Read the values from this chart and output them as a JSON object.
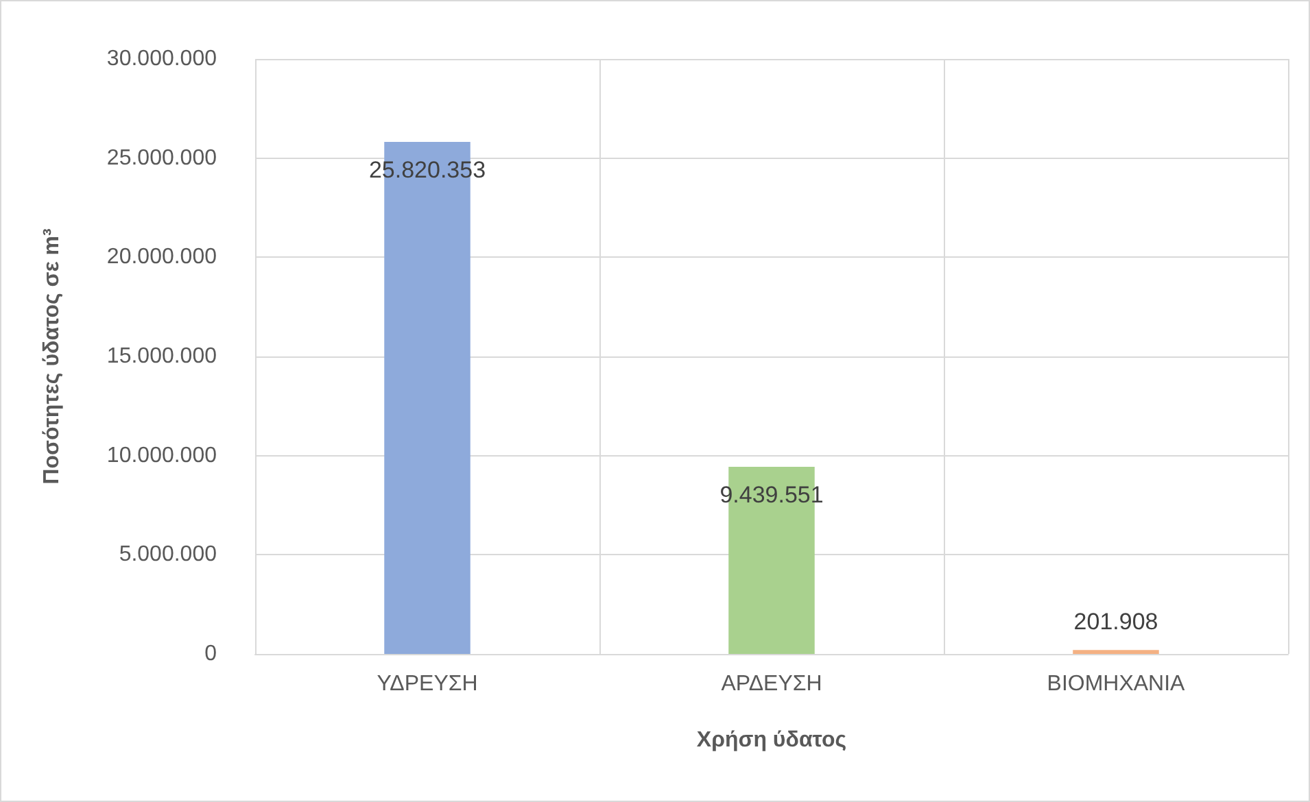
{
  "chart_data": {
    "type": "bar",
    "xlabel": "Χρήση ύδατος",
    "ylabel": "Ποσότητες ύδατος σε m³",
    "categories": [
      "ΥΔΡΕΥΣΗ",
      "ΑΡΔΕΥΣΗ",
      "ΒΙΟΜΗΧΑΝΙΑ"
    ],
    "values": [
      25820353,
      9439551,
      201908
    ],
    "value_labels": [
      "25.820.353",
      "9.439.551",
      "201.908"
    ],
    "colors": [
      "#8eaadb",
      "#a9d18e",
      "#f4b183"
    ],
    "ylim": [
      0,
      30000000
    ],
    "yticks": [
      0,
      {
        "value": 5000000,
        "label": "5.000.000"
      },
      {
        "value": 10000000,
        "label": "10.000.000"
      },
      {
        "value": 15000000,
        "label": "15.000.000"
      },
      {
        "value": 20000000,
        "label": "20.000.000"
      },
      {
        "value": 25000000,
        "label": "25.000.000"
      },
      {
        "value": 30000000,
        "label": "30.000.000"
      }
    ],
    "grid": true
  }
}
